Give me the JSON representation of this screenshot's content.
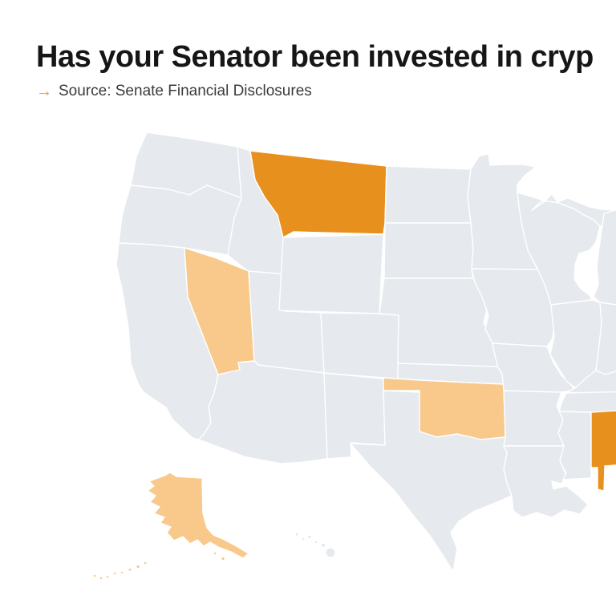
{
  "header": {
    "title": "Has your Senator been invested in cryp",
    "source_text": "Source: Senate Financial Disclosures",
    "source_arrow_glyph": "→"
  },
  "colors": {
    "invested_dark_orange": "#E8901E",
    "invested_light_orange": "#F8C98B",
    "state_default_gray": "#E6E9ED",
    "state_border": "#FFFFFF",
    "arrow_orange": "#EE9A2B",
    "title_text": "#161616",
    "source_text": "#3B3B3B",
    "background": "#FFFFFF"
  },
  "map_data": {
    "type": "choropleth",
    "region": "United States (Albers projection, right edge cropped)",
    "insets": [
      "Alaska",
      "Hawaii"
    ],
    "legend_visible": false,
    "highlight_levels": {
      "dark": "invested_dark_orange",
      "light": "invested_light_orange",
      "none": "state_default_gray"
    },
    "dark_states": [
      "Montana",
      "Alabama"
    ],
    "light_states": [
      "Nevada",
      "Oklahoma",
      "Alaska"
    ]
  },
  "states": [
    {
      "id": "WA",
      "name": "Washington",
      "level": "none"
    },
    {
      "id": "OR",
      "name": "Oregon",
      "level": "none"
    },
    {
      "id": "CA",
      "name": "California",
      "level": "none"
    },
    {
      "id": "ID",
      "name": "Idaho",
      "level": "none"
    },
    {
      "id": "NV",
      "name": "Nevada",
      "level": "light"
    },
    {
      "id": "UT",
      "name": "Utah",
      "level": "none"
    },
    {
      "id": "AZ",
      "name": "Arizona",
      "level": "none"
    },
    {
      "id": "MT",
      "name": "Montana",
      "level": "dark"
    },
    {
      "id": "WY",
      "name": "Wyoming",
      "level": "none"
    },
    {
      "id": "CO",
      "name": "Colorado",
      "level": "none"
    },
    {
      "id": "NM",
      "name": "New Mexico",
      "level": "none"
    },
    {
      "id": "ND",
      "name": "North Dakota",
      "level": "none"
    },
    {
      "id": "SD",
      "name": "South Dakota",
      "level": "none"
    },
    {
      "id": "NE",
      "name": "Nebraska",
      "level": "none"
    },
    {
      "id": "KS",
      "name": "Kansas",
      "level": "none"
    },
    {
      "id": "OK",
      "name": "Oklahoma",
      "level": "light"
    },
    {
      "id": "TX",
      "name": "Texas",
      "level": "none"
    },
    {
      "id": "MN",
      "name": "Minnesota",
      "level": "none"
    },
    {
      "id": "IA",
      "name": "Iowa",
      "level": "none"
    },
    {
      "id": "MO",
      "name": "Missouri",
      "level": "none"
    },
    {
      "id": "AR",
      "name": "Arkansas",
      "level": "none"
    },
    {
      "id": "LA",
      "name": "Louisiana",
      "level": "none"
    },
    {
      "id": "WI",
      "name": "Wisconsin",
      "level": "none"
    },
    {
      "id": "MI_UP",
      "name": "Michigan (Upper Peninsula)",
      "level": "none"
    },
    {
      "id": "MI",
      "name": "Michigan",
      "level": "none"
    },
    {
      "id": "IL",
      "name": "Illinois",
      "level": "none"
    },
    {
      "id": "IN",
      "name": "Indiana",
      "level": "none"
    },
    {
      "id": "KY",
      "name": "Kentucky",
      "level": "none"
    },
    {
      "id": "TN",
      "name": "Tennessee",
      "level": "none"
    },
    {
      "id": "MS",
      "name": "Mississippi",
      "level": "none"
    },
    {
      "id": "AL",
      "name": "Alabama",
      "level": "dark"
    },
    {
      "id": "AK",
      "name": "Alaska",
      "level": "light"
    },
    {
      "id": "AK_ISL",
      "name": "Alaska (Aleutian Islands)",
      "level": "light"
    },
    {
      "id": "HI",
      "name": "Hawaii",
      "level": "none"
    }
  ]
}
